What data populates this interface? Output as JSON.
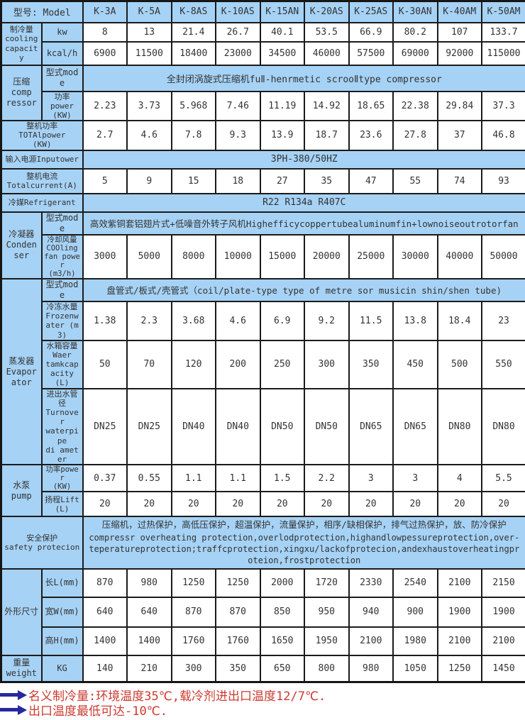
{
  "table": {
    "model_label": "型号: Model",
    "models": [
      "K-3A",
      "K-5A",
      "K-8AS",
      "K-10AS",
      "K-15AN",
      "K-20AS",
      "K-25AS",
      "K-30AN",
      "K-40AM",
      "K-50AM"
    ],
    "cooling": {
      "label": "制冷量\ncooling capacity",
      "kw_label": "kw",
      "kw": [
        "8",
        "13",
        "21.4",
        "26.7",
        "40.1",
        "53.5",
        "66.9",
        "80.2",
        "107",
        "133.7"
      ],
      "kcal_label": "kcal/h",
      "kcal": [
        "6900",
        "11500",
        "18400",
        "23000",
        "34500",
        "46000",
        "57500",
        "69000",
        "92000",
        "115000"
      ]
    },
    "compressor": {
      "label": "压缩\ncomp\nressor",
      "mode_label": "型式mode",
      "mode": "全封闭涡旋式压缩机fuⅡ-henrmetic scrooⅡtype compressor",
      "power_label": "功率\npower\n(KW)",
      "power": [
        "2.23",
        "3.73",
        "5.968",
        "7.46",
        "11.19",
        "14.92",
        "18.65",
        "22.38",
        "29.84",
        "37.3"
      ]
    },
    "total_power": {
      "label": "整机功率\nTOTAlpower\n(KW)",
      "values": [
        "2.7",
        "4.6",
        "7.8",
        "9.3",
        "13.9",
        "18.7",
        "23.6",
        "27.8",
        "37",
        "46.8"
      ]
    },
    "input_power": {
      "label": "输入电源Inputower",
      "value": "3PH-380/50HZ"
    },
    "total_current": {
      "label": "整机电流\nTotalcurrent(A)",
      "values": [
        "5",
        "9",
        "15",
        "18",
        "27",
        "35",
        "47",
        "55",
        "74",
        "93"
      ]
    },
    "refrigerant": {
      "label": "冷媒Refrigerant",
      "value": "R22 R134a R407C"
    },
    "condenser": {
      "label": "冷凝器\nCondenser",
      "mode_label": "型式mode",
      "mode": "高效紫铜套铝翅片式+低噪音外转子风机Highefficycoppertubealuminumfin+lownoiseoutrotorfan",
      "fan_label": "冷却风量\nCOOling\nfan power\n(m3/h)",
      "fan": [
        "3000",
        "5000",
        "8000",
        "10000",
        "15000",
        "20000",
        "25000",
        "30000",
        "40000",
        "50000"
      ]
    },
    "evaporator": {
      "label": "蒸发器\nEvaporator",
      "mode_label": "型式mode",
      "mode": "盘管式/板式/壳管式（coil/plate-type type of metre sor musicin shin/shen tube)",
      "frozen_label": "冷冻水量\nFrozenwater (m3)",
      "frozen": [
        "1.38",
        "2.3",
        "3.68",
        "4.6",
        "6.9",
        "9.2",
        "11.5",
        "13.8",
        "18.4",
        "23"
      ],
      "tank_label": "水箱容量\nWaer\ntamkcapacity(L)",
      "tank": [
        "50",
        "70",
        "120",
        "200",
        "250",
        "300",
        "350",
        "450",
        "500",
        "550"
      ],
      "pipe_label": "进出水管径\nTurnover\nwaterpipe\ndi ameter",
      "pipe": [
        "DN25",
        "DN25",
        "DN40",
        "DN40",
        "DN50",
        "DN50",
        "DN65",
        "DN65",
        "DN80",
        "DN80"
      ]
    },
    "pump": {
      "label": "水泵\npump",
      "power_label": "功率power\n(KW)",
      "power": [
        "0.37",
        "0.55",
        "1.1",
        "1.1",
        "1.5",
        "2.2",
        "3",
        "3",
        "4",
        "5.5"
      ],
      "lift_label": "扬程Lift\n(L)",
      "lift": [
        "20",
        "20",
        "20",
        "20",
        "20",
        "20",
        "20",
        "20",
        "20",
        "20"
      ]
    },
    "safety": {
      "label": "安全保护\nsafety protecion",
      "cn": "压缩机，过热保护，高低压保护，超温保护，流量保护，相序/缺相保护，排气过热保护，放、防冷保护",
      "en": "compressr overheating protection,overlodprotection,highandlowpessureprotection,over-teperatureprotection;traffcprotection,xingxu/lackofprotecion,andexhaustoverheatingproteion,frostprotection"
    },
    "dimensions": {
      "label": "外形尺寸",
      "length_label": "长L(mm)",
      "length": [
        "870",
        "980",
        "1250",
        "1250",
        "2000",
        "1720",
        "2330",
        "2540",
        "2100",
        "2150"
      ],
      "width_label": "宽W(mm)",
      "width": [
        "640",
        "640",
        "870",
        "870",
        "850",
        "950",
        "940",
        "900",
        "1900",
        "1900"
      ],
      "height_label": "高H(mm)",
      "height": [
        "1400",
        "1400",
        "1760",
        "1760",
        "1650",
        "1950",
        "2100",
        "1980",
        "2100",
        "2100"
      ]
    },
    "weight": {
      "label": "重量\nweight",
      "unit": "KG",
      "values": [
        "140",
        "210",
        "300",
        "350",
        "650",
        "800",
        "980",
        "1050",
        "1250",
        "1450"
      ]
    }
  },
  "notes": [
    "名义制冷量:环境温度35℃,载冷剂进出口温度12/7℃.",
    "出口温度最低可达-10℃."
  ],
  "colors": {
    "header_blue": "#a6d2f5",
    "note_red": "#cc3a31",
    "arrow_blue": "#28289e",
    "border": "#1b1b1b"
  }
}
